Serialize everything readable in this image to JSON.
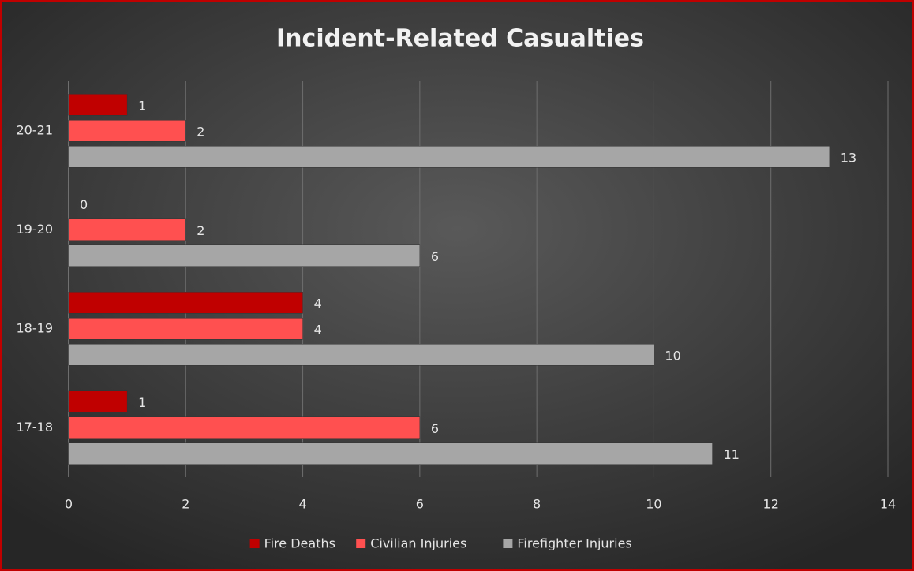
{
  "chart_data": {
    "type": "hbar",
    "title": "Incident-Related  Casualties",
    "categories": [
      "17-18",
      "18-19",
      "19-20",
      "20-21"
    ],
    "series": [
      {
        "name": "Fire Deaths",
        "color": "#c00000",
        "values": [
          1,
          4,
          0,
          1
        ]
      },
      {
        "name": "Civilian Injuries",
        "color": "#ff5050",
        "values": [
          6,
          4,
          2,
          2
        ]
      },
      {
        "name": "Firefighter Injuries",
        "color": "#a6a6a6",
        "values": [
          11,
          10,
          6,
          13
        ]
      }
    ],
    "xlim": [
      0,
      14
    ],
    "xticks": [
      0,
      2,
      4,
      6,
      8,
      10,
      12,
      14
    ],
    "grid": true,
    "legend": "bottom"
  }
}
